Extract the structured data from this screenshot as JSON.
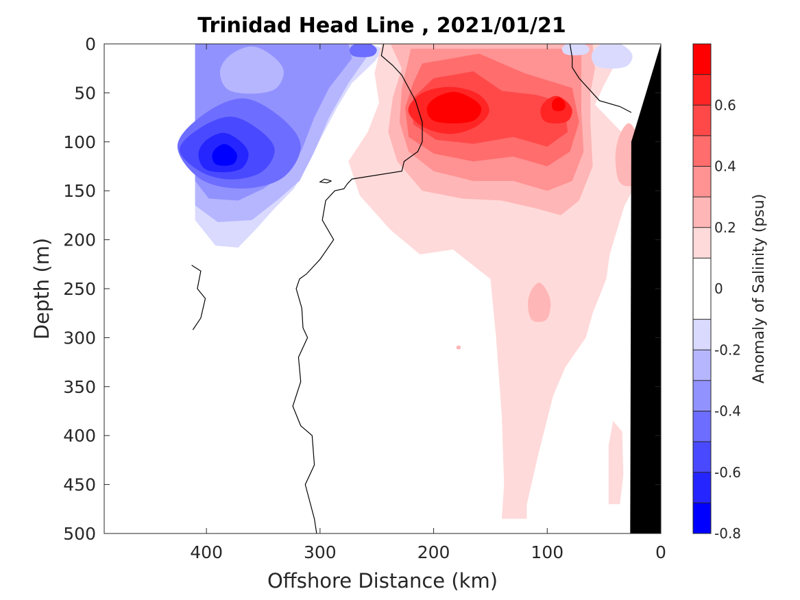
{
  "chart_data": {
    "type": "heatmap",
    "subtype": "filled-contour",
    "title": "Trinidad Head Line , 2021/01/21",
    "xlabel": "Offshore Distance (km)",
    "ylabel": "Depth (m)",
    "xlim": [
      490,
      0
    ],
    "x_reversed": true,
    "ylim": [
      0,
      500
    ],
    "y_reversed": true,
    "xticks": [
      400,
      300,
      200,
      100,
      0
    ],
    "yticks": [
      0,
      50,
      100,
      150,
      200,
      250,
      300,
      350,
      400,
      450,
      500
    ],
    "grid": false,
    "colorbar": {
      "label": "Anomaly of Salinity (psu)",
      "ticks": [
        -0.8,
        -0.6,
        -0.4,
        -0.2,
        0,
        0.2,
        0.4,
        0.6
      ],
      "tick_labels": [
        "-0.8",
        "-0.6",
        "-0.4",
        "-0.2",
        "0",
        "0.2",
        "0.4",
        "0.6"
      ],
      "levels": [
        -0.8,
        -0.7,
        -0.6,
        -0.5,
        -0.4,
        -0.3,
        -0.2,
        -0.1,
        0.1,
        0.2,
        0.3,
        0.4,
        0.5,
        0.6,
        0.7,
        0.8
      ],
      "colors": [
        "#0000ff",
        "#2525ff",
        "#4949ff",
        "#6d6dff",
        "#9292ff",
        "#b6b6ff",
        "#dadaff",
        "#ffffff",
        "#ffdada",
        "#ffb6b6",
        "#ff9292",
        "#ff6d6d",
        "#ff4949",
        "#ff2525",
        "#ff0000"
      ]
    },
    "features": {
      "negative_anomaly_region": {
        "x_range": [
          410,
          240
        ],
        "depth_range": [
          0,
          210
        ],
        "min_value": -0.65,
        "min_location": {
          "x": 385,
          "depth": 115
        }
      },
      "positive_anomaly_core": {
        "x_range": [
          230,
          30
        ],
        "depth_range": [
          0,
          300
        ],
        "max_value": 0.75,
        "max_location": {
          "x": 180,
          "depth": 60
        }
      },
      "secondary_positive_core": {
        "value": 0.7,
        "location": {
          "x": 90,
          "depth": 65
        }
      },
      "positive_tongue": {
        "x_range": [
          145,
          70
        ],
        "depth_range": [
          300,
          485
        ],
        "value": 0.15
      },
      "zero_contour": "black line",
      "bathymetry": "black filled region near 0 km"
    }
  }
}
